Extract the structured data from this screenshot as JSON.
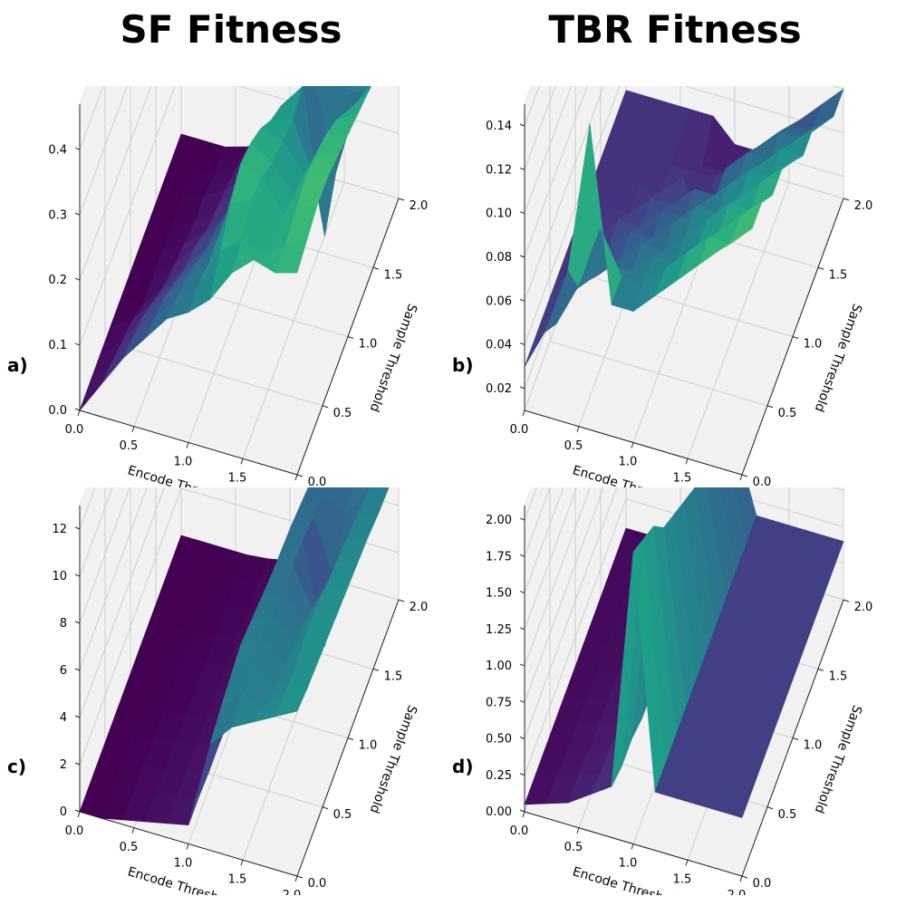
{
  "figure": {
    "titles": {
      "sf": "SF Fitness",
      "tbr": "TBR Fitness"
    }
  },
  "colormap": "viridis",
  "chart_data": [
    {
      "type": "surface",
      "panel_label": "a)",
      "column": "SF Fitness",
      "xlabel": "Encode Threshold",
      "ylabel": "Sample Threshold",
      "zlabel": "",
      "x_ticks": [
        "0.0",
        "0.5",
        "1.0",
        "1.5",
        "2.0"
      ],
      "y_ticks": [
        "0.0",
        "0.5",
        "1.0",
        "1.5",
        "2.0"
      ],
      "z_ticks": [
        "0.0",
        "0.1",
        "0.2",
        "0.3",
        "0.4"
      ],
      "xlim": [
        0,
        2
      ],
      "ylim": [
        0,
        2
      ],
      "zlim": [
        0,
        0.47
      ],
      "x": [
        0.0,
        0.2,
        0.4,
        0.6,
        0.8,
        1.0,
        1.2,
        1.4,
        1.6,
        1.8,
        2.0
      ],
      "y": [
        0.0,
        0.2,
        0.4,
        0.6,
        0.8,
        1.0,
        1.2,
        1.4,
        1.6,
        1.8,
        2.0
      ],
      "z": [
        [
          0.0,
          0.05,
          0.1,
          0.14,
          0.18,
          0.2,
          0.23,
          0.28,
          0.31,
          0.3,
          0.31
        ],
        [
          0.0,
          0.04,
          0.09,
          0.13,
          0.17,
          0.2,
          0.26,
          0.29,
          0.27,
          0.3,
          0.32
        ],
        [
          0.0,
          0.03,
          0.08,
          0.12,
          0.16,
          0.19,
          0.29,
          0.31,
          0.26,
          0.31,
          0.33
        ],
        [
          0.0,
          0.02,
          0.06,
          0.1,
          0.14,
          0.18,
          0.31,
          0.3,
          0.25,
          0.32,
          0.33
        ],
        [
          0.0,
          0.0,
          0.04,
          0.08,
          0.12,
          0.16,
          0.3,
          0.28,
          0.24,
          0.31,
          0.32
        ],
        [
          0.0,
          0.0,
          0.03,
          0.07,
          0.11,
          0.15,
          0.28,
          0.27,
          0.23,
          0.3,
          0.31
        ],
        [
          0.0,
          0.0,
          0.02,
          0.05,
          0.09,
          0.13,
          0.25,
          0.26,
          0.18,
          0.28,
          0.3
        ],
        [
          0.0,
          0.0,
          0.01,
          0.04,
          0.08,
          0.13,
          0.23,
          0.27,
          0.05,
          0.25,
          0.29
        ],
        [
          0.0,
          0.0,
          0.01,
          0.03,
          0.06,
          0.11,
          0.16,
          0.25,
          0.1,
          0.22,
          0.28
        ],
        [
          0.0,
          0.0,
          0.0,
          0.02,
          0.05,
          0.09,
          0.14,
          0.2,
          0.18,
          0.2,
          0.27
        ],
        [
          0.0,
          0.0,
          0.0,
          0.01,
          0.03,
          0.06,
          0.1,
          0.16,
          0.2,
          0.22,
          0.26
        ]
      ]
    },
    {
      "type": "surface",
      "panel_label": "b)",
      "column": "TBR Fitness",
      "xlabel": "Encode Threshold",
      "ylabel": "Sample Threshold",
      "zlabel": "",
      "x_ticks": [
        "0.0",
        "0.5",
        "1.0",
        "1.5",
        "2.0"
      ],
      "y_ticks": [
        "0.0",
        "0.5",
        "1.0",
        "1.5",
        "2.0"
      ],
      "z_ticks": [
        "0.02",
        "0.04",
        "0.06",
        "0.08",
        "0.10",
        "0.12",
        "0.14"
      ],
      "xlim": [
        0,
        2
      ],
      "ylim": [
        0,
        2
      ],
      "zlim": [
        0.01,
        0.15
      ],
      "x": [
        0.0,
        0.2,
        0.4,
        0.6,
        0.8,
        1.0,
        1.2,
        1.4,
        1.6,
        1.8,
        2.0
      ],
      "y": [
        0.0,
        0.2,
        0.4,
        0.6,
        0.8,
        1.0,
        1.2,
        1.4,
        1.6,
        1.8,
        2.0
      ],
      "z": [
        [
          0.03,
          0.05,
          0.08,
          0.15,
          0.07,
          0.07,
          0.08,
          0.09,
          0.1,
          0.11,
          0.12
        ],
        [
          0.03,
          0.04,
          0.06,
          0.09,
          0.07,
          0.07,
          0.08,
          0.09,
          0.1,
          0.1,
          0.11
        ],
        [
          0.03,
          0.04,
          0.05,
          0.06,
          0.06,
          0.07,
          0.07,
          0.08,
          0.09,
          0.1,
          0.11
        ],
        [
          0.03,
          0.04,
          0.04,
          0.05,
          0.06,
          0.06,
          0.07,
          0.08,
          0.09,
          0.09,
          0.1
        ],
        [
          0.03,
          0.03,
          0.04,
          0.05,
          0.05,
          0.06,
          0.07,
          0.07,
          0.08,
          0.09,
          0.1
        ],
        [
          0.03,
          0.03,
          0.04,
          0.04,
          0.05,
          0.05,
          0.06,
          0.07,
          0.08,
          0.08,
          0.09
        ],
        [
          0.03,
          0.03,
          0.03,
          0.04,
          0.04,
          0.05,
          0.05,
          0.06,
          0.07,
          0.08,
          0.08
        ],
        [
          0.03,
          0.03,
          0.03,
          0.03,
          0.04,
          0.02,
          0.05,
          0.06,
          0.06,
          0.07,
          0.08
        ],
        [
          0.03,
          0.03,
          0.03,
          0.03,
          0.03,
          0.03,
          0.04,
          0.05,
          0.06,
          0.06,
          0.07
        ],
        [
          0.03,
          0.03,
          0.03,
          0.03,
          0.02,
          0.02,
          0.03,
          0.04,
          0.05,
          0.05,
          0.06
        ],
        [
          0.03,
          0.03,
          0.03,
          0.03,
          0.03,
          0.02,
          0.02,
          0.03,
          0.04,
          0.05,
          0.06
        ]
      ]
    },
    {
      "type": "surface",
      "panel_label": "c)",
      "column": "SF Fitness",
      "xlabel": "Encode Threshold",
      "ylabel": "Sample Threshold",
      "zlabel": "",
      "x_ticks": [
        "0.0",
        "0.5",
        "1.0",
        "1.5",
        "2.0"
      ],
      "y_ticks": [
        "0.0",
        "0.5",
        "1.0",
        "1.5",
        "2.0"
      ],
      "z_ticks": [
        "0",
        "2",
        "4",
        "6",
        "8",
        "10",
        "12"
      ],
      "xlim": [
        0,
        2
      ],
      "ylim": [
        0,
        2
      ],
      "zlim": [
        0,
        13
      ],
      "x": [
        0.0,
        0.2,
        0.4,
        0.6,
        0.8,
        1.0,
        1.2,
        1.4,
        1.6,
        1.8,
        2.0
      ],
      "y": [
        0.0,
        0.2,
        0.4,
        0.6,
        0.8,
        1.0,
        1.2,
        1.4,
        1.6,
        1.8,
        2.0
      ],
      "z": [
        [
          0.0,
          0.0,
          0.2,
          0.4,
          0.6,
          0.8,
          4.5,
          5.5,
          6.0,
          6.5,
          7.0
        ],
        [
          0.0,
          0.0,
          0.2,
          0.4,
          0.6,
          0.8,
          4.8,
          5.8,
          5.5,
          6.4,
          6.8
        ],
        [
          0.0,
          0.0,
          0.2,
          0.3,
          0.5,
          0.7,
          5.0,
          6.0,
          5.0,
          6.3,
          6.7
        ],
        [
          0.0,
          0.0,
          0.1,
          0.3,
          0.5,
          0.7,
          5.2,
          5.8,
          4.8,
          6.5,
          6.6
        ],
        [
          0.0,
          0.0,
          0.1,
          0.2,
          0.4,
          0.6,
          5.0,
          5.6,
          4.6,
          6.4,
          6.5
        ],
        [
          0.0,
          0.0,
          0.1,
          0.2,
          0.4,
          0.6,
          4.8,
          5.4,
          4.4,
          6.2,
          6.4
        ],
        [
          0.0,
          0.0,
          0.1,
          0.2,
          0.3,
          0.5,
          4.6,
          5.3,
          3.5,
          6.0,
          6.3
        ],
        [
          0.0,
          0.0,
          0.0,
          0.1,
          0.3,
          0.5,
          4.5,
          5.2,
          1.0,
          5.8,
          6.2
        ],
        [
          0.0,
          0.0,
          0.0,
          0.1,
          0.2,
          0.4,
          4.4,
          5.0,
          2.5,
          5.6,
          6.0
        ],
        [
          0.0,
          0.0,
          0.0,
          0.1,
          0.2,
          0.3,
          4.2,
          4.8,
          4.2,
          5.4,
          5.9
        ],
        [
          0.0,
          0.0,
          0.0,
          0.0,
          0.1,
          0.3,
          4.0,
          4.6,
          4.5,
          5.3,
          5.8
        ]
      ]
    },
    {
      "type": "surface",
      "panel_label": "d)",
      "column": "TBR Fitness",
      "xlabel": "Encode Threshold",
      "ylabel": "Sample Threshold",
      "zlabel": "",
      "x_ticks": [
        "0.0",
        "0.5",
        "1.0",
        "1.5",
        "2.0"
      ],
      "y_ticks": [
        "0.0",
        "0.5",
        "1.0",
        "1.5",
        "2.0"
      ],
      "z_ticks": [
        "0.00",
        "0.25",
        "0.50",
        "0.75",
        "1.00",
        "1.25",
        "1.50",
        "1.75",
        "2.00"
      ],
      "xlim": [
        0,
        2
      ],
      "ylim": [
        0,
        2
      ],
      "zlim": [
        0,
        2.1
      ],
      "x": [
        0.0,
        0.2,
        0.4,
        0.6,
        0.8,
        1.0,
        1.2,
        1.4,
        1.6,
        1.8,
        2.0
      ],
      "y": [
        0.0,
        0.2,
        0.4,
        0.6,
        0.8,
        1.0,
        1.2,
        1.4,
        1.6,
        1.8,
        2.0
      ],
      "z": [
        [
          0.05,
          0.1,
          0.15,
          0.25,
          0.35,
          2.0,
          0.4,
          0.4,
          0.4,
          0.4,
          0.4
        ],
        [
          0.05,
          0.1,
          0.15,
          0.2,
          0.3,
          1.9,
          0.4,
          0.4,
          0.4,
          0.4,
          0.4
        ],
        [
          0.05,
          0.08,
          0.12,
          0.18,
          0.3,
          1.8,
          0.4,
          0.4,
          0.4,
          0.4,
          0.4
        ],
        [
          0.05,
          0.08,
          0.12,
          0.16,
          0.25,
          1.6,
          0.4,
          0.4,
          0.4,
          0.4,
          0.4
        ],
        [
          0.05,
          0.06,
          0.1,
          0.15,
          0.25,
          1.5,
          0.4,
          0.4,
          0.4,
          0.4,
          0.4
        ],
        [
          0.05,
          0.06,
          0.1,
          0.14,
          0.2,
          1.4,
          0.4,
          0.4,
          0.4,
          0.4,
          0.4
        ],
        [
          0.05,
          0.05,
          0.08,
          0.12,
          0.2,
          1.3,
          0.4,
          0.4,
          0.4,
          0.4,
          0.4
        ],
        [
          0.05,
          0.05,
          0.08,
          0.1,
          0.15,
          1.2,
          0.4,
          0.4,
          0.4,
          0.4,
          0.4
        ],
        [
          0.05,
          0.05,
          0.06,
          0.1,
          0.15,
          1.1,
          0.4,
          0.4,
          0.4,
          0.4,
          0.4
        ],
        [
          0.05,
          0.05,
          0.06,
          0.08,
          0.1,
          1.0,
          0.4,
          0.4,
          0.4,
          0.4,
          0.4
        ],
        [
          0.05,
          0.05,
          0.05,
          0.08,
          0.1,
          0.9,
          0.4,
          0.4,
          0.4,
          0.4,
          0.4
        ]
      ]
    }
  ]
}
